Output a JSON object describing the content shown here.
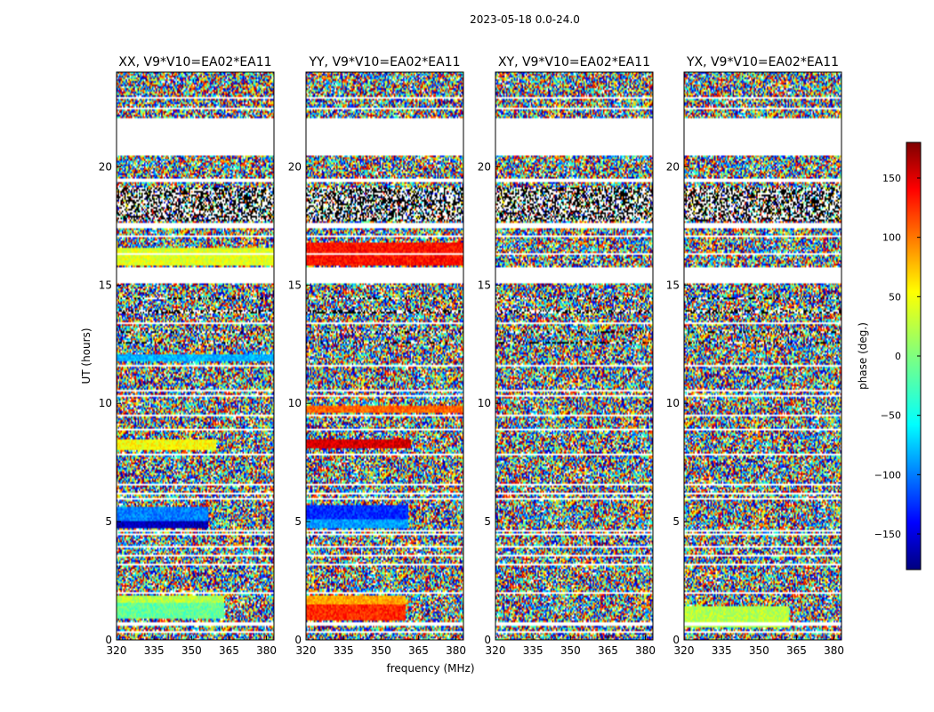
{
  "suptitle": "2023-05-18 0.0-24.0",
  "shared_xlabel": "frequency (MHz)",
  "shared_ylabel": "UT (hours)",
  "colorbar": {
    "label": "phase (deg.)",
    "range": [
      -180,
      180
    ],
    "ticks": [
      -150,
      -100,
      -50,
      0,
      50,
      100,
      150
    ],
    "tick_labels": [
      "−150",
      "−100",
      "−50",
      "0",
      "50",
      "100",
      "150"
    ],
    "colormap": "jet"
  },
  "chart_data": [
    {
      "type": "heatmap",
      "title": "XX, V9*V10=EA02*EA11",
      "xlim": [
        320,
        383
      ],
      "ylim": [
        0,
        24
      ],
      "xticks": [
        320,
        335,
        350,
        365,
        380
      ],
      "yticks": [
        0,
        5,
        10,
        15,
        20
      ],
      "value_range": [
        -180,
        180
      ],
      "features": [
        {
          "ut": [
            0.9,
            1.6
          ],
          "freq": [
            320,
            363
          ],
          "phase": -10
        },
        {
          "ut": [
            1.6,
            1.9
          ],
          "freq": [
            320,
            363
          ],
          "phase": 20
        },
        {
          "ut": [
            4.7,
            5.05
          ],
          "freq": [
            320,
            357
          ],
          "phase": -160
        },
        {
          "ut": [
            5.05,
            5.6
          ],
          "freq": [
            320,
            357
          ],
          "phase": -90
        },
        {
          "ut": [
            8.0,
            8.5
          ],
          "freq": [
            320,
            360
          ],
          "phase": 45
        },
        {
          "ut": [
            11.8,
            12.1
          ],
          "freq": [
            320,
            383
          ],
          "phase": -70
        },
        {
          "ut": [
            15.8,
            16.6
          ],
          "freq": [
            320,
            383
          ],
          "phase": 35
        }
      ]
    },
    {
      "type": "heatmap",
      "title": "YY, V9*V10=EA02*EA11",
      "xlim": [
        320,
        383
      ],
      "ylim": [
        0,
        24
      ],
      "xticks": [
        320,
        335,
        350,
        365,
        380
      ],
      "yticks": [
        0,
        5,
        10,
        15,
        20
      ],
      "value_range": [
        -180,
        180
      ],
      "features": [
        {
          "ut": [
            0.8,
            1.5
          ],
          "freq": [
            320,
            360
          ],
          "phase": 120
        },
        {
          "ut": [
            1.5,
            1.9
          ],
          "freq": [
            320,
            360
          ],
          "phase": 75
        },
        {
          "ut": [
            4.7,
            5.1
          ],
          "freq": [
            320,
            361
          ],
          "phase": -80
        },
        {
          "ut": [
            5.1,
            5.7
          ],
          "freq": [
            320,
            361
          ],
          "phase": -120
        },
        {
          "ut": [
            8.1,
            8.5
          ],
          "freq": [
            320,
            362
          ],
          "phase": 150
        },
        {
          "ut": [
            9.6,
            9.9
          ],
          "freq": [
            320,
            383
          ],
          "phase": 100
        },
        {
          "ut": [
            15.8,
            16.8
          ],
          "freq": [
            320,
            383
          ],
          "phase": 130
        }
      ]
    },
    {
      "type": "heatmap",
      "title": "XY, V9*V10=EA02*EA11",
      "xlim": [
        320,
        383
      ],
      "ylim": [
        0,
        24
      ],
      "xticks": [
        320,
        335,
        350,
        365,
        380
      ],
      "yticks": [
        0,
        5,
        10,
        15,
        20
      ],
      "value_range": [
        -180,
        180
      ],
      "features": []
    },
    {
      "type": "heatmap",
      "title": "YX, V9*V10=EA02*EA11",
      "xlim": [
        320,
        383
      ],
      "ylim": [
        0,
        24
      ],
      "xticks": [
        320,
        335,
        350,
        365,
        380
      ],
      "yticks": [
        0,
        5,
        10,
        15,
        20
      ],
      "value_range": [
        -180,
        180
      ],
      "features": [
        {
          "ut": [
            0.5,
            1.4
          ],
          "freq": [
            320,
            362
          ],
          "phase": 20
        }
      ]
    }
  ]
}
